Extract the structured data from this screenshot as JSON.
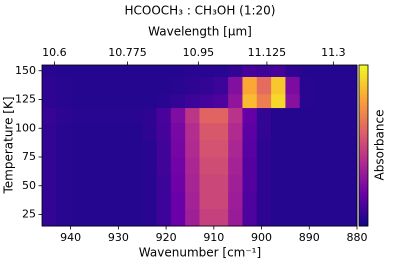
{
  "chart_data": {
    "type": "heatmap",
    "title": "HCOOCH₃ : CH₃OH (1:20)",
    "x_label": "Wavenumber [cm⁻¹]",
    "x2_label": "Wavelength [μm]",
    "y_label": "Temperature [K]",
    "colorbar_label": "Absorbance",
    "xlim": [
      946,
      880
    ],
    "xticks": [
      940,
      930,
      920,
      910,
      900,
      890,
      880
    ],
    "x2ticks": [
      10.6,
      10.775,
      10.95,
      11.125,
      11.3
    ],
    "ylim": [
      15,
      155
    ],
    "yticks": [
      25,
      50,
      75,
      100,
      125,
      150
    ],
    "zlim": [
      0,
      1
    ],
    "colormap": [
      "#0d0887",
      "#6a00a8",
      "#b12a90",
      "#e16462",
      "#fca636",
      "#f0f921"
    ],
    "xbins": [
      946,
      943,
      940,
      937,
      934,
      931,
      928,
      925,
      922,
      919,
      916,
      913,
      910,
      907,
      904,
      901,
      898,
      895,
      892,
      889,
      886,
      883,
      880
    ],
    "ybins": [
      15,
      30,
      45,
      60,
      75,
      90,
      105,
      118,
      130,
      145,
      155
    ],
    "z": [
      [
        0.08,
        0.06,
        0.05,
        0.05,
        0.05,
        0.05,
        0.05,
        0.06,
        0.1,
        0.2,
        0.35,
        0.48,
        0.48,
        0.33,
        0.14,
        0.07,
        0.05,
        0.05,
        0.05,
        0.05,
        0.05,
        0.05
      ],
      [
        0.08,
        0.06,
        0.05,
        0.05,
        0.05,
        0.05,
        0.05,
        0.06,
        0.1,
        0.2,
        0.36,
        0.5,
        0.5,
        0.34,
        0.14,
        0.07,
        0.05,
        0.05,
        0.05,
        0.05,
        0.05,
        0.05
      ],
      [
        0.08,
        0.06,
        0.05,
        0.05,
        0.05,
        0.05,
        0.05,
        0.06,
        0.1,
        0.21,
        0.37,
        0.5,
        0.5,
        0.35,
        0.15,
        0.07,
        0.05,
        0.05,
        0.05,
        0.05,
        0.05,
        0.05
      ],
      [
        0.08,
        0.06,
        0.05,
        0.05,
        0.05,
        0.05,
        0.05,
        0.06,
        0.11,
        0.22,
        0.38,
        0.52,
        0.52,
        0.36,
        0.15,
        0.07,
        0.05,
        0.05,
        0.05,
        0.05,
        0.05,
        0.05
      ],
      [
        0.08,
        0.06,
        0.05,
        0.05,
        0.05,
        0.05,
        0.05,
        0.06,
        0.11,
        0.23,
        0.4,
        0.54,
        0.54,
        0.38,
        0.16,
        0.07,
        0.05,
        0.05,
        0.05,
        0.05,
        0.05,
        0.05
      ],
      [
        0.08,
        0.06,
        0.05,
        0.05,
        0.05,
        0.05,
        0.05,
        0.07,
        0.12,
        0.24,
        0.41,
        0.56,
        0.56,
        0.4,
        0.17,
        0.08,
        0.05,
        0.05,
        0.05,
        0.05,
        0.05,
        0.05
      ],
      [
        0.09,
        0.07,
        0.06,
        0.06,
        0.06,
        0.06,
        0.06,
        0.07,
        0.13,
        0.26,
        0.44,
        0.6,
        0.6,
        0.43,
        0.19,
        0.08,
        0.05,
        0.05,
        0.05,
        0.05,
        0.05,
        0.05
      ],
      [
        0.07,
        0.06,
        0.05,
        0.05,
        0.05,
        0.05,
        0.05,
        0.05,
        0.06,
        0.08,
        0.1,
        0.12,
        0.14,
        0.3,
        0.85,
        0.68,
        0.92,
        0.28,
        0.06,
        0.05,
        0.05,
        0.05
      ],
      [
        0.07,
        0.06,
        0.05,
        0.05,
        0.05,
        0.05,
        0.05,
        0.05,
        0.05,
        0.06,
        0.07,
        0.08,
        0.1,
        0.27,
        0.8,
        0.62,
        0.88,
        0.25,
        0.06,
        0.05,
        0.05,
        0.05
      ],
      [
        0.06,
        0.05,
        0.05,
        0.05,
        0.05,
        0.05,
        0.05,
        0.05,
        0.05,
        0.05,
        0.06,
        0.06,
        0.06,
        0.08,
        0.12,
        0.1,
        0.12,
        0.07,
        0.05,
        0.05,
        0.05,
        0.05
      ]
    ]
  }
}
